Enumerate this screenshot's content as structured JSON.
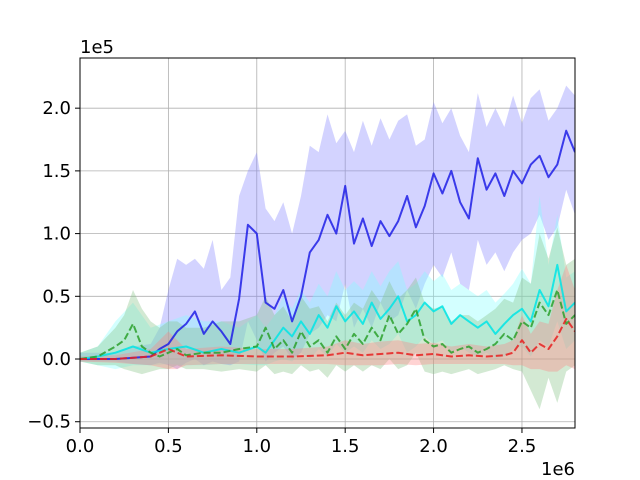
{
  "chart_data": {
    "type": "line",
    "title": "",
    "xlabel": "",
    "ylabel": "",
    "x_offset_text": "1e6",
    "y_offset_text": "1e5",
    "xlim": [
      0.0,
      2.8
    ],
    "ylim": [
      -0.55,
      2.4
    ],
    "x_ticks": [
      0.0,
      0.5,
      1.0,
      1.5,
      2.0,
      2.5
    ],
    "x_tick_labels": [
      "0.0",
      "0.5",
      "1.0",
      "1.5",
      "2.0",
      "2.5"
    ],
    "y_ticks": [
      -0.5,
      0.0,
      0.5,
      1.0,
      1.5,
      2.0
    ],
    "y_tick_labels": [
      "−0.5",
      "0.0",
      "0.5",
      "1.0",
      "1.5",
      "2.0"
    ],
    "grid": true,
    "series": [
      {
        "color": "#1f1fe6",
        "band_color": "#8080ff",
        "style": "solid",
        "x": [
          0.0,
          0.1,
          0.2,
          0.3,
          0.4,
          0.45,
          0.5,
          0.55,
          0.6,
          0.65,
          0.7,
          0.75,
          0.8,
          0.85,
          0.9,
          0.95,
          1.0,
          1.05,
          1.1,
          1.15,
          1.2,
          1.25,
          1.3,
          1.35,
          1.4,
          1.45,
          1.5,
          1.55,
          1.6,
          1.65,
          1.7,
          1.75,
          1.8,
          1.85,
          1.9,
          1.95,
          2.0,
          2.05,
          2.1,
          2.15,
          2.2,
          2.25,
          2.3,
          2.35,
          2.4,
          2.45,
          2.5,
          2.55,
          2.6,
          2.65,
          2.7,
          2.75,
          2.8
        ],
        "values": [
          0.0,
          0.0,
          0.0,
          0.01,
          0.02,
          0.08,
          0.12,
          0.22,
          0.28,
          0.38,
          0.2,
          0.3,
          0.22,
          0.12,
          0.48,
          1.07,
          1.0,
          0.45,
          0.4,
          0.55,
          0.3,
          0.5,
          0.85,
          0.95,
          1.15,
          1.0,
          1.38,
          0.92,
          1.12,
          0.9,
          1.1,
          0.98,
          1.1,
          1.3,
          1.05,
          1.22,
          1.48,
          1.32,
          1.5,
          1.25,
          1.12,
          1.6,
          1.35,
          1.48,
          1.3,
          1.5,
          1.4,
          1.55,
          1.62,
          1.45,
          1.55,
          1.82,
          1.65
        ],
        "upper": [
          0.05,
          0.05,
          0.05,
          0.1,
          0.12,
          0.25,
          0.55,
          0.8,
          0.75,
          0.8,
          0.72,
          0.95,
          0.55,
          0.65,
          1.3,
          1.5,
          1.65,
          1.2,
          1.1,
          1.25,
          1.0,
          1.3,
          1.7,
          1.65,
          1.95,
          1.72,
          1.82,
          1.65,
          1.9,
          1.7,
          1.92,
          1.75,
          1.9,
          1.95,
          1.7,
          1.75,
          2.05,
          1.88,
          2.0,
          1.78,
          1.65,
          2.12,
          1.85,
          2.0,
          1.85,
          2.1,
          1.88,
          2.08,
          2.15,
          1.9,
          2.0,
          2.18,
          2.1
        ],
        "lower": [
          -0.02,
          -0.02,
          -0.02,
          -0.04,
          -0.05,
          -0.03,
          -0.05,
          -0.08,
          -0.03,
          0.0,
          -0.05,
          -0.02,
          -0.04,
          -0.05,
          -0.02,
          0.3,
          0.15,
          -0.02,
          0.05,
          0.1,
          0.0,
          0.05,
          0.2,
          0.25,
          0.35,
          0.3,
          0.6,
          0.25,
          0.4,
          0.25,
          0.45,
          0.3,
          0.35,
          0.55,
          0.4,
          0.6,
          0.75,
          0.65,
          0.85,
          0.6,
          0.55,
          0.95,
          0.75,
          0.85,
          0.7,
          0.85,
          0.95,
          1.0,
          1.15,
          0.95,
          1.05,
          1.35,
          1.15
        ]
      },
      {
        "color": "#00e5e5",
        "band_color": "#80ffff",
        "style": "solid",
        "x": [
          0.0,
          0.1,
          0.2,
          0.3,
          0.4,
          0.5,
          0.6,
          0.7,
          0.8,
          0.9,
          1.0,
          1.05,
          1.1,
          1.15,
          1.2,
          1.25,
          1.3,
          1.35,
          1.4,
          1.45,
          1.5,
          1.55,
          1.6,
          1.65,
          1.7,
          1.75,
          1.8,
          1.85,
          1.9,
          1.95,
          2.0,
          2.05,
          2.1,
          2.15,
          2.2,
          2.25,
          2.3,
          2.35,
          2.4,
          2.45,
          2.5,
          2.55,
          2.6,
          2.65,
          2.7,
          2.75,
          2.8
        ],
        "values": [
          0.0,
          0.02,
          0.05,
          0.1,
          0.05,
          0.08,
          0.1,
          0.05,
          0.08,
          0.05,
          0.1,
          0.05,
          0.15,
          0.25,
          0.18,
          0.3,
          0.2,
          0.35,
          0.25,
          0.42,
          0.3,
          0.38,
          0.28,
          0.45,
          0.32,
          0.4,
          0.5,
          0.3,
          0.35,
          0.45,
          0.38,
          0.42,
          0.28,
          0.35,
          0.3,
          0.25,
          0.3,
          0.2,
          0.28,
          0.35,
          0.4,
          0.3,
          0.55,
          0.42,
          0.75,
          0.38,
          0.45
        ],
        "upper": [
          0.05,
          0.1,
          0.3,
          0.45,
          0.25,
          0.3,
          0.35,
          0.3,
          0.3,
          0.25,
          0.35,
          0.25,
          0.35,
          0.5,
          0.4,
          0.55,
          0.45,
          0.6,
          0.5,
          0.7,
          0.55,
          0.62,
          0.55,
          0.7,
          0.58,
          0.7,
          0.78,
          0.55,
          0.6,
          0.7,
          0.62,
          0.68,
          0.55,
          0.6,
          0.55,
          0.5,
          0.55,
          0.45,
          0.52,
          0.6,
          0.72,
          0.6,
          1.3,
          0.75,
          1.15,
          0.65,
          0.7
        ],
        "lower": [
          -0.02,
          -0.05,
          -0.08,
          -0.05,
          -0.05,
          -0.04,
          -0.05,
          -0.05,
          -0.04,
          -0.04,
          -0.05,
          -0.05,
          -0.02,
          0.0,
          -0.02,
          0.05,
          0.0,
          0.08,
          0.02,
          0.12,
          0.05,
          0.1,
          0.05,
          0.15,
          0.08,
          0.12,
          0.2,
          0.05,
          0.1,
          0.18,
          0.12,
          0.15,
          0.05,
          0.1,
          0.05,
          0.02,
          0.05,
          0.0,
          0.02,
          0.08,
          0.1,
          0.02,
          0.15,
          0.1,
          0.3,
          0.08,
          0.15
        ]
      },
      {
        "color": "#2ca02c",
        "band_color": "#80c080",
        "style": "dashed",
        "x": [
          0.0,
          0.1,
          0.2,
          0.25,
          0.3,
          0.35,
          0.4,
          0.45,
          0.5,
          0.55,
          0.6,
          0.7,
          0.8,
          0.9,
          1.0,
          1.05,
          1.1,
          1.15,
          1.2,
          1.25,
          1.3,
          1.35,
          1.4,
          1.45,
          1.5,
          1.55,
          1.6,
          1.65,
          1.7,
          1.75,
          1.8,
          1.85,
          1.9,
          1.95,
          2.0,
          2.05,
          2.1,
          2.15,
          2.2,
          2.25,
          2.3,
          2.35,
          2.4,
          2.45,
          2.5,
          2.55,
          2.6,
          2.65,
          2.7,
          2.75,
          2.8
        ],
        "values": [
          0.0,
          0.02,
          0.1,
          0.15,
          0.28,
          0.1,
          0.05,
          0.02,
          0.05,
          0.08,
          0.03,
          0.05,
          0.05,
          0.08,
          0.1,
          0.25,
          0.08,
          0.15,
          0.05,
          0.22,
          0.1,
          0.15,
          0.05,
          0.18,
          0.08,
          0.2,
          0.12,
          0.25,
          0.15,
          0.35,
          0.2,
          0.28,
          0.4,
          0.15,
          0.1,
          0.12,
          0.05,
          0.08,
          0.1,
          0.05,
          0.08,
          0.12,
          0.2,
          0.15,
          0.3,
          0.25,
          0.45,
          0.35,
          0.55,
          0.28,
          0.35
        ],
        "upper": [
          0.05,
          0.1,
          0.25,
          0.35,
          0.55,
          0.4,
          0.3,
          0.25,
          0.3,
          0.3,
          0.25,
          0.25,
          0.3,
          0.3,
          0.35,
          0.5,
          0.35,
          0.42,
          0.3,
          0.5,
          0.4,
          0.42,
          0.3,
          0.45,
          0.35,
          0.45,
          0.4,
          0.55,
          0.45,
          0.62,
          0.48,
          0.55,
          0.65,
          0.45,
          0.4,
          0.42,
          0.3,
          0.35,
          0.35,
          0.3,
          0.35,
          0.4,
          0.48,
          0.45,
          0.65,
          0.6,
          1.0,
          0.8,
          1.05,
          0.75,
          0.8
        ],
        "lower": [
          -0.02,
          -0.05,
          -0.05,
          -0.08,
          -0.1,
          -0.12,
          -0.1,
          -0.08,
          -0.08,
          -0.05,
          -0.08,
          -0.08,
          -0.1,
          -0.08,
          -0.1,
          -0.05,
          -0.12,
          -0.1,
          -0.12,
          -0.05,
          -0.1,
          -0.08,
          -0.15,
          -0.05,
          -0.1,
          -0.05,
          -0.1,
          -0.05,
          -0.08,
          0.0,
          -0.08,
          -0.05,
          0.05,
          -0.1,
          -0.12,
          -0.1,
          -0.12,
          -0.1,
          -0.08,
          -0.12,
          -0.1,
          -0.08,
          -0.05,
          -0.08,
          -0.1,
          -0.25,
          -0.4,
          -0.15,
          -0.35,
          -0.1,
          -0.05
        ]
      },
      {
        "color": "#e62020",
        "band_color": "#ff8080",
        "style": "dashed",
        "x": [
          0.0,
          0.2,
          0.4,
          0.5,
          0.55,
          0.6,
          0.8,
          1.0,
          1.2,
          1.4,
          1.5,
          1.6,
          1.7,
          1.8,
          1.9,
          2.0,
          2.1,
          2.2,
          2.3,
          2.4,
          2.45,
          2.5,
          2.55,
          2.6,
          2.65,
          2.7,
          2.75,
          2.8
        ],
        "values": [
          0.0,
          0.0,
          0.02,
          0.08,
          0.05,
          0.02,
          0.03,
          0.02,
          0.02,
          0.03,
          0.05,
          0.03,
          0.04,
          0.05,
          0.03,
          0.04,
          0.02,
          0.03,
          0.02,
          0.03,
          0.05,
          0.15,
          0.05,
          0.12,
          0.08,
          0.18,
          0.32,
          0.22
        ],
        "upper": [
          0.02,
          0.03,
          0.08,
          0.22,
          0.15,
          0.08,
          0.1,
          0.08,
          0.08,
          0.1,
          0.15,
          0.12,
          0.14,
          0.15,
          0.12,
          0.13,
          0.1,
          0.12,
          0.1,
          0.12,
          0.15,
          0.35,
          0.2,
          0.3,
          0.28,
          0.55,
          0.75,
          0.55
        ],
        "lower": [
          -0.02,
          -0.03,
          -0.05,
          -0.08,
          -0.08,
          -0.05,
          -0.04,
          -0.04,
          -0.04,
          -0.04,
          -0.05,
          -0.05,
          -0.05,
          -0.04,
          -0.05,
          -0.04,
          -0.04,
          -0.04,
          -0.04,
          -0.04,
          -0.05,
          -0.05,
          -0.08,
          -0.08,
          -0.1,
          -0.1,
          -0.05,
          -0.08
        ]
      }
    ]
  }
}
